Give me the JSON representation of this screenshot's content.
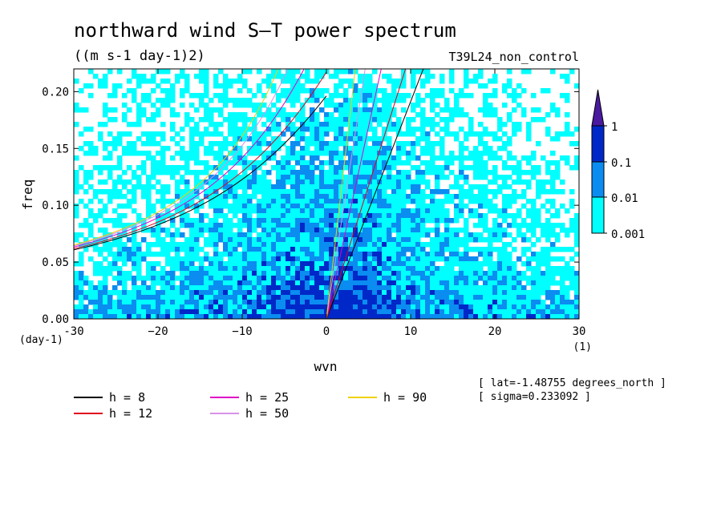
{
  "chart_data": {
    "type": "heatmap",
    "title": "northward wind S–T power spectrum",
    "subtitle": "((m s-1 day-1)2)",
    "run_label": "T39L24_non_control",
    "xlabel": "wvn",
    "ylabel": "freq",
    "x_unit": "(1)",
    "y_unit": "(day-1)",
    "xlim": [
      -30,
      30
    ],
    "ylim": [
      0,
      0.22
    ],
    "x_ticks": [
      -30,
      -20,
      -10,
      0,
      10,
      20,
      30
    ],
    "y_ticks": [
      0,
      0.05,
      0.1,
      0.15,
      0.2
    ],
    "y_tick_labels": [
      "0.00",
      "0.05",
      "0.10",
      "0.15",
      "0.20"
    ],
    "x_tick_labels": [
      "-30",
      "−20",
      "−10",
      "0",
      "10",
      "20",
      "30"
    ],
    "colorbar": {
      "levels": [
        "0.001",
        "0.01",
        "0.1",
        "1"
      ],
      "colors": [
        "#00ffff",
        "#0a8cf0",
        "#0028c8",
        "#4a1aa0"
      ]
    },
    "dispersion_curves": [
      {
        "name": "h =  8",
        "h": 8,
        "color": "#000000"
      },
      {
        "name": "h = 12",
        "h": 12,
        "color": "#e0001e"
      },
      {
        "name": "h = 25",
        "h": 25,
        "color": "#e000c8"
      },
      {
        "name": "h = 50",
        "h": 50,
        "color": "#d890e8"
      },
      {
        "name": "h = 90",
        "h": 90,
        "color": "#f0d000"
      }
    ],
    "annotations": [
      "[ lat=-1.48755 degrees_north ]",
      "[ sigma=0.233092 ]"
    ]
  }
}
